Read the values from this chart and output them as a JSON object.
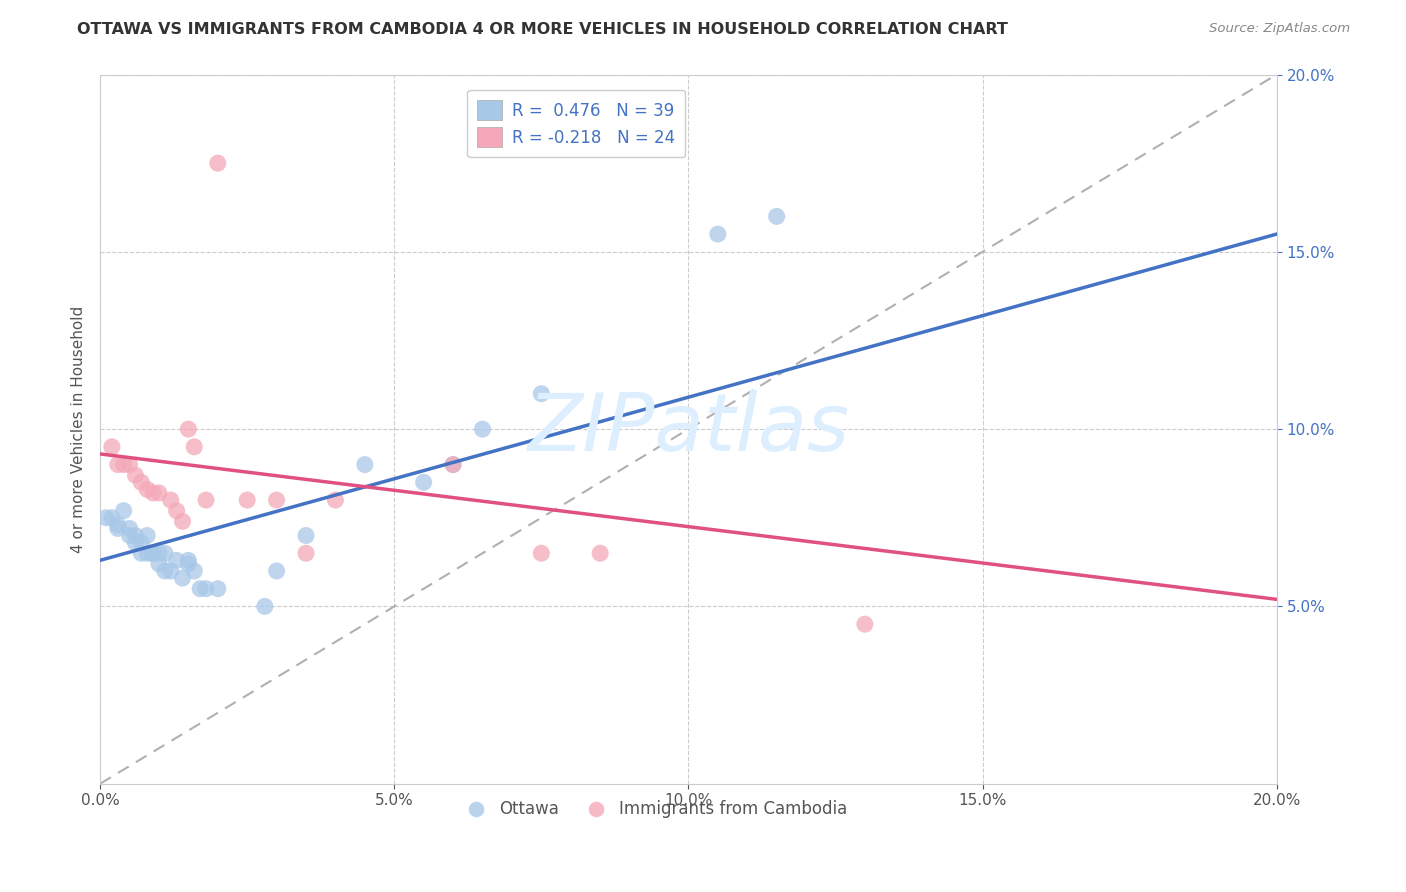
{
  "title": "OTTAWA VS IMMIGRANTS FROM CAMBODIA 4 OR MORE VEHICLES IN HOUSEHOLD CORRELATION CHART",
  "source": "Source: ZipAtlas.com",
  "ylabel": "4 or more Vehicles in Household",
  "xlim": [
    0.0,
    0.2
  ],
  "ylim": [
    0.0,
    0.2
  ],
  "color_ottawa": "#a8c8e8",
  "color_cambodia": "#f4a8b8",
  "color_line_ottawa": "#4472c4",
  "color_line_cambodia": "#e05080",
  "color_line_dashed": "#b0b0b0",
  "watermark_color": "#ddeeff",
  "legend_r1_label": "R =  0.476   N = 39",
  "legend_r2_label": "R = -0.218   N = 24",
  "ottawa_x": [
    0.001,
    0.002,
    0.003,
    0.003,
    0.004,
    0.005,
    0.005,
    0.006,
    0.006,
    0.007,
    0.007,
    0.008,
    0.008,
    0.009,
    0.009,
    0.009,
    0.01,
    0.01,
    0.011,
    0.011,
    0.012,
    0.013,
    0.014,
    0.015,
    0.015,
    0.016,
    0.017,
    0.018,
    0.02,
    0.028,
    0.03,
    0.035,
    0.045,
    0.055,
    0.06,
    0.065,
    0.075,
    0.105,
    0.115
  ],
  "ottawa_y": [
    0.075,
    0.075,
    0.072,
    0.073,
    0.077,
    0.072,
    0.07,
    0.068,
    0.07,
    0.065,
    0.068,
    0.065,
    0.07,
    0.065,
    0.065,
    0.065,
    0.065,
    0.062,
    0.065,
    0.06,
    0.06,
    0.063,
    0.058,
    0.062,
    0.063,
    0.06,
    0.055,
    0.055,
    0.055,
    0.05,
    0.06,
    0.07,
    0.09,
    0.085,
    0.09,
    0.1,
    0.11,
    0.155,
    0.16
  ],
  "cambodia_x": [
    0.002,
    0.003,
    0.004,
    0.005,
    0.006,
    0.007,
    0.008,
    0.009,
    0.01,
    0.012,
    0.013,
    0.014,
    0.015,
    0.016,
    0.018,
    0.02,
    0.025,
    0.03,
    0.035,
    0.04,
    0.06,
    0.075,
    0.085,
    0.13
  ],
  "cambodia_y": [
    0.095,
    0.09,
    0.09,
    0.09,
    0.087,
    0.085,
    0.083,
    0.082,
    0.082,
    0.08,
    0.077,
    0.074,
    0.1,
    0.095,
    0.08,
    0.175,
    0.08,
    0.08,
    0.065,
    0.08,
    0.09,
    0.065,
    0.065,
    0.045
  ],
  "line_ottawa_x0": 0.0,
  "line_ottawa_x1": 0.2,
  "line_cambodia_x0": 0.0,
  "line_cambodia_x1": 0.2
}
